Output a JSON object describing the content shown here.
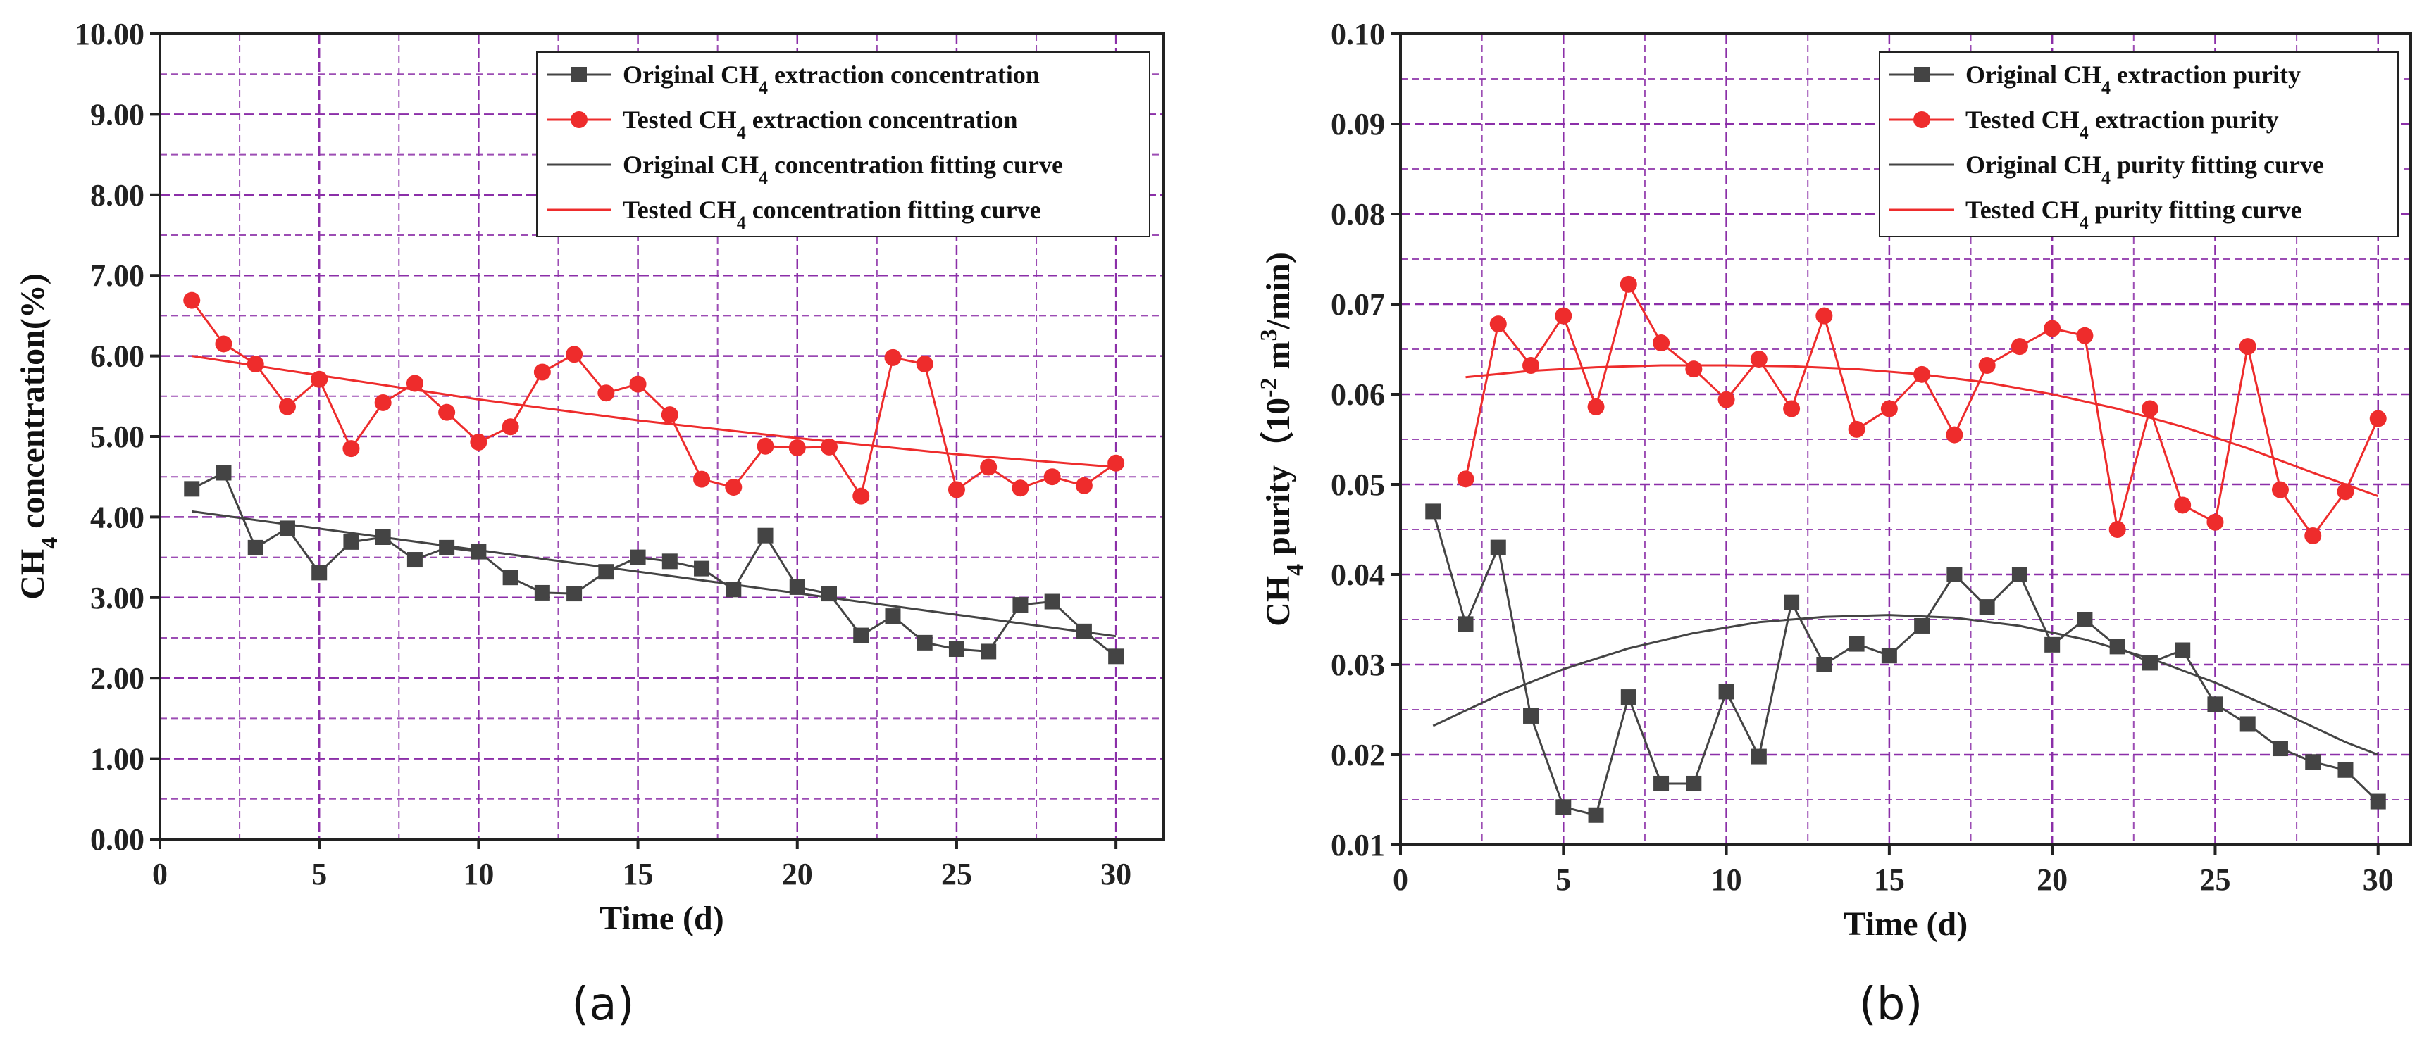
{
  "colors": {
    "original": "#444444",
    "tested": "#ee2c2c",
    "grid": "#8b2fa8"
  },
  "chart_data": [
    {
      "id": "a",
      "type": "line",
      "caption": "(a)",
      "title": "",
      "xlabel": "Time (d)",
      "ylabel": "CH4 concentration(%)",
      "ylabel_parts": {
        "pre": "CH",
        "sub": "4",
        "post": " concentration(%)"
      },
      "xlim": [
        0,
        31.5
      ],
      "ylim": [
        0,
        10
      ],
      "xticks": [
        0,
        5,
        10,
        15,
        20,
        25,
        30
      ],
      "xtick_labels": [
        "0",
        "5",
        "10",
        "15",
        "20",
        "25",
        "30"
      ],
      "yticks": [
        0,
        1,
        2,
        3,
        4,
        5,
        6,
        7,
        8,
        9,
        10
      ],
      "ytick_labels": [
        "0.00",
        "1.00",
        "2.00",
        "3.00",
        "4.00",
        "5.00",
        "6.00",
        "7.00",
        "8.00",
        "9.00",
        "10.00"
      ],
      "grid": true,
      "legend_position": "top-right",
      "series": [
        {
          "key": "orig",
          "kind": "points",
          "marker": "square",
          "color": "#444444",
          "name": "Original CH4 extraction concentration",
          "legend": {
            "pre": "Original CH",
            "sub": "4",
            "post": " extraction concentration"
          },
          "x": [
            1,
            2,
            3,
            4,
            5,
            6,
            7,
            8,
            9,
            10,
            11,
            12,
            13,
            14,
            15,
            16,
            17,
            18,
            19,
            20,
            21,
            22,
            23,
            24,
            25,
            26,
            27,
            28,
            29,
            30
          ],
          "y": [
            4.35,
            4.55,
            3.62,
            3.86,
            3.31,
            3.69,
            3.75,
            3.47,
            3.62,
            3.57,
            3.25,
            3.06,
            3.05,
            3.32,
            3.5,
            3.45,
            3.36,
            3.1,
            3.77,
            3.13,
            3.05,
            2.53,
            2.77,
            2.44,
            2.36,
            2.33,
            2.91,
            2.95,
            2.58,
            2.27
          ]
        },
        {
          "key": "tested",
          "kind": "points",
          "marker": "circle",
          "color": "#ee2c2c",
          "name": "Tested CH4 extraction concentration",
          "legend": {
            "pre": "Tested CH",
            "sub": "4",
            "post": " extraction concentration"
          },
          "x": [
            1,
            2,
            3,
            4,
            5,
            6,
            7,
            8,
            9,
            10,
            11,
            12,
            13,
            14,
            15,
            16,
            17,
            18,
            19,
            20,
            21,
            22,
            23,
            24,
            25,
            26,
            27,
            28,
            29,
            30
          ],
          "y": [
            6.69,
            6.15,
            5.9,
            5.37,
            5.71,
            4.85,
            5.42,
            5.66,
            5.3,
            4.93,
            5.12,
            5.8,
            6.02,
            5.54,
            5.65,
            5.27,
            4.47,
            4.37,
            4.88,
            4.86,
            4.87,
            4.26,
            5.98,
            5.9,
            4.34,
            4.62,
            4.36,
            4.5,
            4.39,
            4.67
          ]
        },
        {
          "key": "origfit",
          "kind": "fit",
          "color": "#444444",
          "name": "Original CH4 concentration fitting curve",
          "legend": {
            "pre": "Original CH",
            "sub": "4",
            "post": " concentration fitting curve"
          },
          "x": [
            1,
            30
          ],
          "y": [
            4.07,
            2.52
          ]
        },
        {
          "key": "testedfit",
          "kind": "fit",
          "color": "#ee2c2c",
          "name": "Tested CH4 concentration fitting curve",
          "legend": {
            "pre": "Tested CH",
            "sub": "4",
            "post": " concentration fitting curve"
          },
          "x": [
            1,
            5,
            10,
            15,
            20,
            25,
            30
          ],
          "y": [
            6.0,
            5.76,
            5.46,
            5.2,
            4.98,
            4.78,
            4.62
          ]
        }
      ]
    },
    {
      "id": "b",
      "type": "line",
      "caption": "(b)",
      "title": "",
      "xlabel": "Time (d)",
      "ylabel": "CH4 purity (10-2 m3/min)",
      "ylabel_parts": {
        "pre": "CH",
        "sub": "4",
        "mid": " purity（10",
        "sup1": "-2",
        "mid2": " m",
        "sup2": "3",
        "post": "/min)"
      },
      "xlim": [
        0,
        31
      ],
      "ylim": [
        0.01,
        0.1
      ],
      "xticks": [
        0,
        5,
        10,
        15,
        20,
        25,
        30
      ],
      "xtick_labels": [
        "0",
        "5",
        "10",
        "15",
        "20",
        "25",
        "30"
      ],
      "yticks": [
        0.01,
        0.02,
        0.03,
        0.04,
        0.05,
        0.06,
        0.07,
        0.08,
        0.09,
        0.1
      ],
      "ytick_labels": [
        "0.01",
        "0.02",
        "0.03",
        "0.04",
        "0.05",
        "0.06",
        "0.07",
        "0.08",
        "0.09",
        "0.10"
      ],
      "grid": true,
      "legend_position": "top-right",
      "series": [
        {
          "key": "orig",
          "kind": "points",
          "marker": "square",
          "color": "#444444",
          "name": "Original CH4 extraction purity",
          "legend": {
            "pre": "Original CH",
            "sub": "4",
            "post": " extraction purity"
          },
          "x": [
            1,
            2,
            3,
            4,
            5,
            6,
            7,
            8,
            9,
            10,
            11,
            12,
            13,
            14,
            15,
            16,
            17,
            18,
            19,
            20,
            21,
            22,
            23,
            24,
            25,
            26,
            27,
            28,
            29,
            30
          ],
          "y": [
            0.047,
            0.0345,
            0.043,
            0.0243,
            0.0142,
            0.0133,
            0.0264,
            0.0168,
            0.0168,
            0.027,
            0.0198,
            0.0369,
            0.03,
            0.0323,
            0.031,
            0.0343,
            0.04,
            0.0364,
            0.04,
            0.0322,
            0.035,
            0.032,
            0.0302,
            0.0316,
            0.0256,
            0.0234,
            0.0207,
            0.0192,
            0.0183,
            0.0148
          ]
        },
        {
          "key": "tested",
          "kind": "points",
          "marker": "circle",
          "color": "#ee2c2c",
          "name": "Tested CH4 extraction purity",
          "legend": {
            "pre": "Tested CH",
            "sub": "4",
            "post": " extraction purity"
          },
          "x": [
            2,
            3,
            4,
            5,
            6,
            7,
            8,
            9,
            10,
            11,
            12,
            13,
            14,
            15,
            16,
            17,
            18,
            19,
            20,
            21,
            22,
            23,
            24,
            25,
            26,
            27,
            28,
            29,
            30
          ],
          "y": [
            0.0506,
            0.0678,
            0.0632,
            0.0687,
            0.0586,
            0.0722,
            0.0657,
            0.0628,
            0.0594,
            0.0639,
            0.0584,
            0.0687,
            0.0561,
            0.0584,
            0.0622,
            0.0555,
            0.0632,
            0.0653,
            0.0673,
            0.0665,
            0.045,
            0.0584,
            0.0477,
            0.0458,
            0.0653,
            0.0494,
            0.0443,
            0.0492,
            0.0573
          ]
        },
        {
          "key": "origfit",
          "kind": "fit",
          "color": "#444444",
          "name": "Original CH4 purity fitting curve",
          "legend": {
            "pre": "Original CH",
            "sub": "4",
            "post": " purity fitting curve"
          },
          "x": [
            1,
            3,
            5,
            7,
            9,
            11,
            13,
            15,
            17,
            19,
            21,
            23,
            25,
            27,
            29,
            30
          ],
          "y": [
            0.0232,
            0.0266,
            0.0295,
            0.0318,
            0.0335,
            0.0347,
            0.0353,
            0.0355,
            0.0352,
            0.0343,
            0.0328,
            0.0307,
            0.028,
            0.0248,
            0.0214,
            0.02
          ]
        },
        {
          "key": "testedfit",
          "kind": "fit",
          "color": "#ee2c2c",
          "name": "Tested CH4 purity fitting curve",
          "legend": {
            "pre": "Tested CH",
            "sub": "4",
            "post": " purity fitting curve"
          },
          "x": [
            2,
            4,
            6,
            8,
            10,
            12,
            14,
            16,
            18,
            20,
            22,
            24,
            26,
            28,
            30
          ],
          "y": [
            0.0619,
            0.0626,
            0.063,
            0.0632,
            0.0632,
            0.0631,
            0.0628,
            0.0622,
            0.0613,
            0.06,
            0.0584,
            0.0564,
            0.054,
            0.0513,
            0.0487
          ]
        }
      ]
    }
  ]
}
